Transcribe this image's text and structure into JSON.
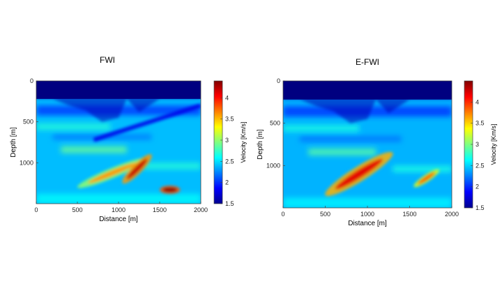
{
  "chart_data": [
    {
      "type": "heatmap",
      "title": "FWI",
      "xlabel": "Distance [m]",
      "ylabel": "Depth [m]",
      "xlim": [
        0,
        2000
      ],
      "ylim": [
        0,
        1500
      ],
      "x_ticks": [
        "0",
        "500",
        "1000",
        "1500",
        "2000"
      ],
      "y_ticks": [
        "0",
        "500",
        "1000"
      ],
      "colorbar": {
        "label": "Velocity [Km/s]",
        "range": [
          1.5,
          4.4
        ],
        "ticks": [
          "1.5",
          "2",
          "2.5",
          "3",
          "3.5",
          "4"
        ]
      },
      "colormap": "jet",
      "features": [
        {
          "kind": "water_layer",
          "depth_m": [
            0,
            220
          ],
          "velocity": 1.5
        },
        {
          "kind": "high_velocity_lens",
          "x_m": [
            500,
            1350
          ],
          "depth_m": [
            950,
            1300
          ],
          "velocity": 3.6
        },
        {
          "kind": "high_velocity_lens",
          "x_m": [
            1050,
            1400
          ],
          "depth_m": [
            900,
            1250
          ],
          "velocity": 4.2
        },
        {
          "kind": "high_velocity_body",
          "x_m": [
            1500,
            1750
          ],
          "depth_m": [
            1280,
            1380
          ],
          "velocity": 4.4
        },
        {
          "kind": "low_velocity_band",
          "x_m": [
            700,
            2000
          ],
          "depth_m": [
            300,
            720
          ],
          "velocity": 1.8
        }
      ]
    },
    {
      "type": "heatmap",
      "title": "E-FWI",
      "xlabel": "Distance [m]",
      "ylabel": "Depth [m]",
      "xlim": [
        0,
        2000
      ],
      "ylim": [
        0,
        1500
      ],
      "x_ticks": [
        "0",
        "500",
        "1000",
        "1500",
        "2000"
      ],
      "y_ticks": [
        "0",
        "500",
        "1000"
      ],
      "colorbar": {
        "label": "Velocity [Km/s]",
        "range": [
          1.5,
          4.5
        ],
        "ticks": [
          "1.5",
          "2",
          "2.5",
          "3",
          "3.5",
          "4"
        ]
      },
      "colormap": "jet",
      "features": [
        {
          "kind": "water_layer",
          "depth_m": [
            0,
            220
          ],
          "velocity": 1.5
        },
        {
          "kind": "high_velocity_lens",
          "x_m": [
            500,
            1300
          ],
          "depth_m": [
            850,
            1350
          ],
          "velocity": 4.2
        },
        {
          "kind": "high_velocity_lens",
          "x_m": [
            1550,
            1850
          ],
          "depth_m": [
            1050,
            1250
          ],
          "velocity": 3.9
        }
      ]
    }
  ]
}
